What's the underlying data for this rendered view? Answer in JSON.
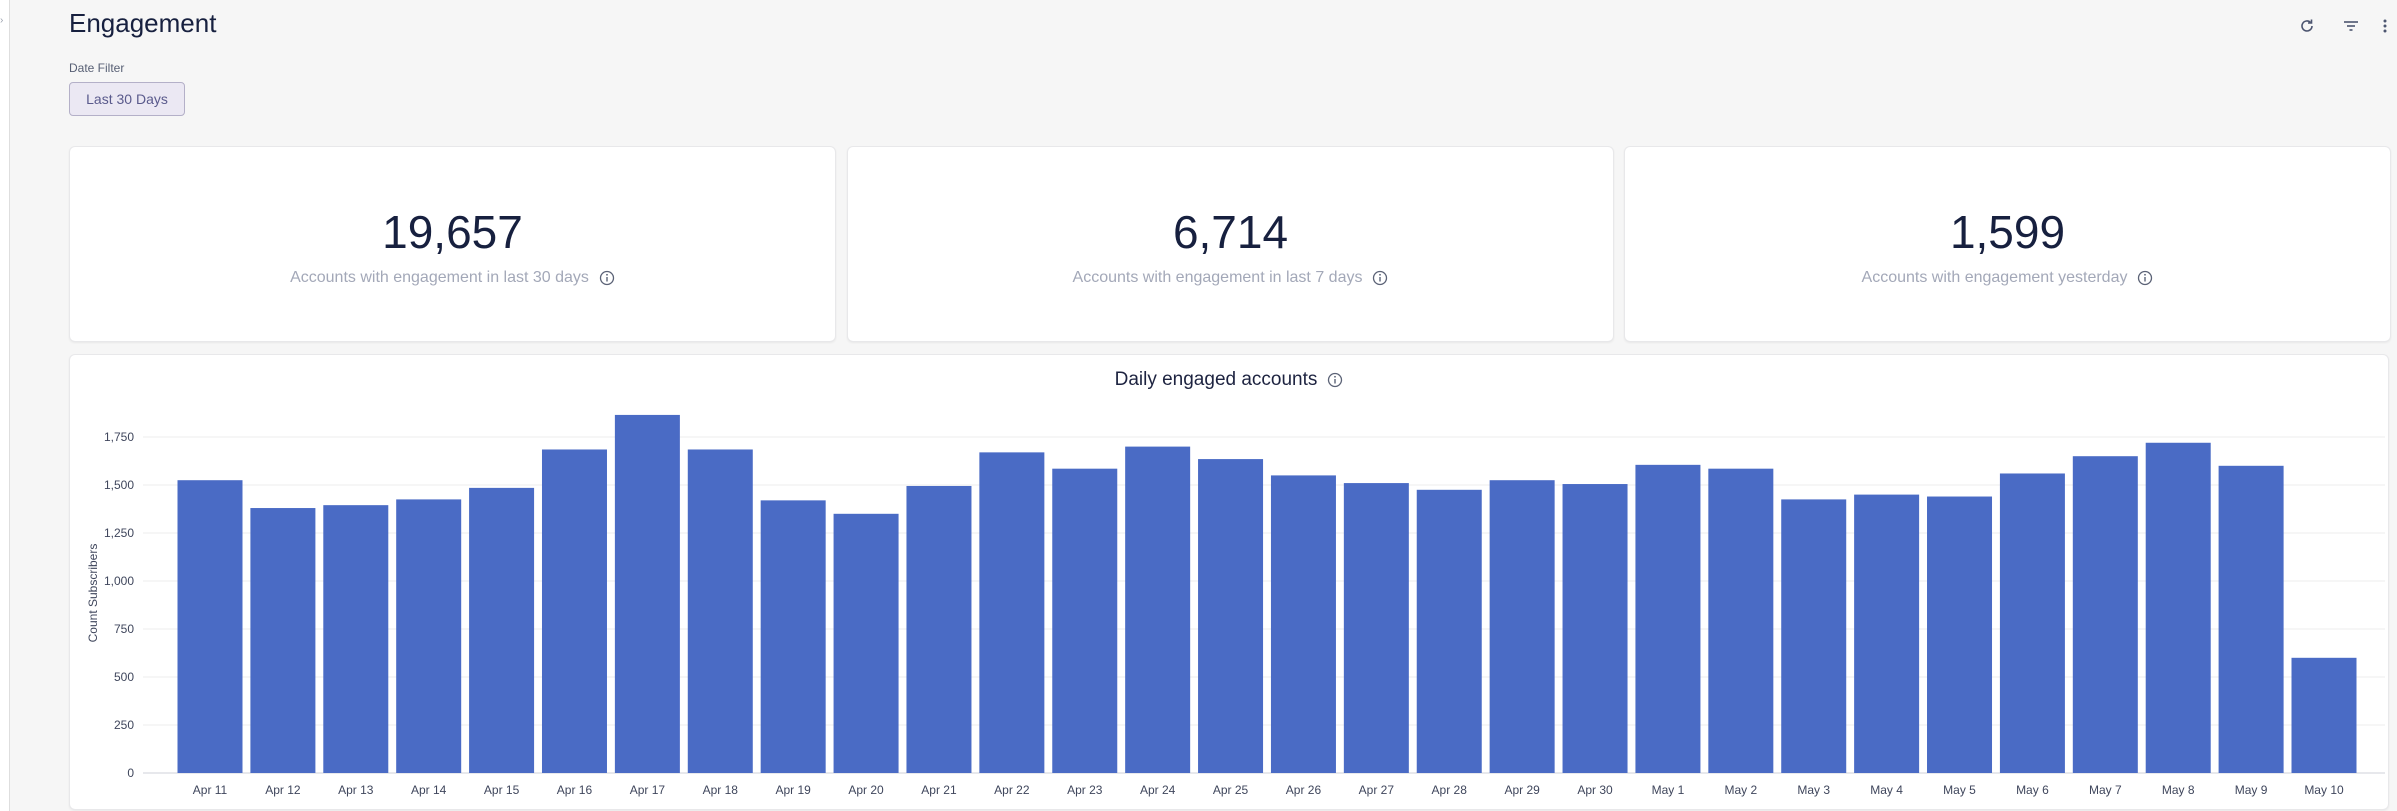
{
  "header": {
    "title": "Engagement"
  },
  "filter": {
    "label": "Date Filter",
    "value": "Last 30 Days"
  },
  "kpis": [
    {
      "value": "19,657",
      "label": "Accounts with engagement in last 30 days"
    },
    {
      "value": "6,714",
      "label": "Accounts with engagement in last 7 days"
    },
    {
      "value": "1,599",
      "label": "Accounts with engagement yesterday"
    }
  ],
  "icons": {
    "refresh": "refresh-icon",
    "filter": "filter-icon",
    "more": "more-vertical-icon",
    "info": "info-icon",
    "rail": "chevron-icon"
  },
  "colors": {
    "bar": "#4a6bc5",
    "text": "#17203f",
    "muted": "#a3a8b8"
  },
  "chart_data": {
    "type": "bar",
    "title": "Daily engaged accounts",
    "xlabel": "",
    "ylabel": "Count Subscribers",
    "ylim": [
      0,
      1875
    ],
    "yticks": [
      "0",
      "250",
      "500",
      "750",
      "1,000",
      "1,250",
      "1,500",
      "1,750"
    ],
    "yticks_values": [
      0,
      250,
      500,
      750,
      1000,
      1250,
      1500,
      1750
    ],
    "grid": true,
    "categories": [
      "Apr 11",
      "Apr 12",
      "Apr 13",
      "Apr 14",
      "Apr 15",
      "Apr 16",
      "Apr 17",
      "Apr 18",
      "Apr 19",
      "Apr 20",
      "Apr 21",
      "Apr 22",
      "Apr 23",
      "Apr 24",
      "Apr 25",
      "Apr 26",
      "Apr 27",
      "Apr 28",
      "Apr 29",
      "Apr 30",
      "May 1",
      "May 2",
      "May 3",
      "May 4",
      "May 5",
      "May 6",
      "May 7",
      "May 8",
      "May 9",
      "May 10"
    ],
    "values": [
      1525,
      1380,
      1395,
      1425,
      1485,
      1685,
      1865,
      1685,
      1420,
      1350,
      1495,
      1670,
      1585,
      1700,
      1635,
      1550,
      1510,
      1475,
      1525,
      1505,
      1605,
      1585,
      1425,
      1450,
      1440,
      1560,
      1650,
      1720,
      1600,
      600
    ]
  }
}
